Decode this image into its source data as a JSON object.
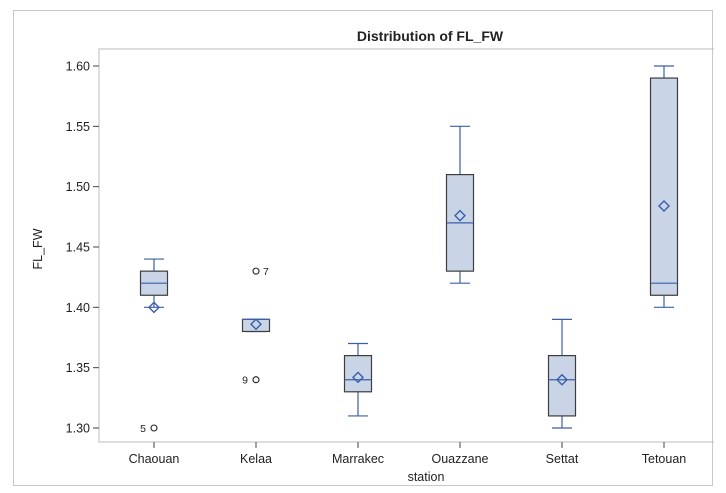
{
  "chart_data": {
    "type": "box",
    "title": "Distribution of FL_FW",
    "xlabel": "station",
    "ylabel": "FL_FW",
    "ylim": [
      1.29,
      1.61
    ],
    "yticks": [
      "1.30",
      "1.35",
      "1.40",
      "1.45",
      "1.50",
      "1.55",
      "1.60"
    ],
    "categories": [
      "Chaouan",
      "Kelaa",
      "Marrakec",
      "Ouazzane",
      "Settat",
      "Tetouan"
    ],
    "boxes": [
      {
        "category": "Chaouan",
        "whisker_low": 1.4,
        "q1": 1.41,
        "median": 1.42,
        "q3": 1.43,
        "whisker_high": 1.44,
        "mean": 1.4,
        "outliers": [
          {
            "value": 1.3,
            "label": "5"
          }
        ]
      },
      {
        "category": "Kelaa",
        "whisker_low": 1.38,
        "q1": 1.38,
        "median": 1.39,
        "q3": 1.39,
        "whisker_high": 1.39,
        "mean": 1.386,
        "outliers": [
          {
            "value": 1.43,
            "label": "7"
          },
          {
            "value": 1.34,
            "label": "9"
          }
        ]
      },
      {
        "category": "Marrakec",
        "whisker_low": 1.31,
        "q1": 1.33,
        "median": 1.34,
        "q3": 1.36,
        "whisker_high": 1.37,
        "mean": 1.342,
        "outliers": []
      },
      {
        "category": "Ouazzane",
        "whisker_low": 1.42,
        "q1": 1.43,
        "median": 1.47,
        "q3": 1.51,
        "whisker_high": 1.55,
        "mean": 1.476,
        "outliers": []
      },
      {
        "category": "Settat",
        "whisker_low": 1.3,
        "q1": 1.31,
        "median": 1.34,
        "q3": 1.36,
        "whisker_high": 1.39,
        "mean": 1.34,
        "outliers": []
      },
      {
        "category": "Tetouan",
        "whisker_low": 1.4,
        "q1": 1.41,
        "median": 1.42,
        "q3": 1.59,
        "whisker_high": 1.6,
        "mean": 1.484,
        "outliers": []
      }
    ],
    "colors": {
      "box_fill": "#c9d5e6",
      "box_edge": "#3d3d3d",
      "median_whisker": "#3b5fa8",
      "mean_marker": "#3b5fa8",
      "outlier": "#222222"
    },
    "grid": false
  }
}
